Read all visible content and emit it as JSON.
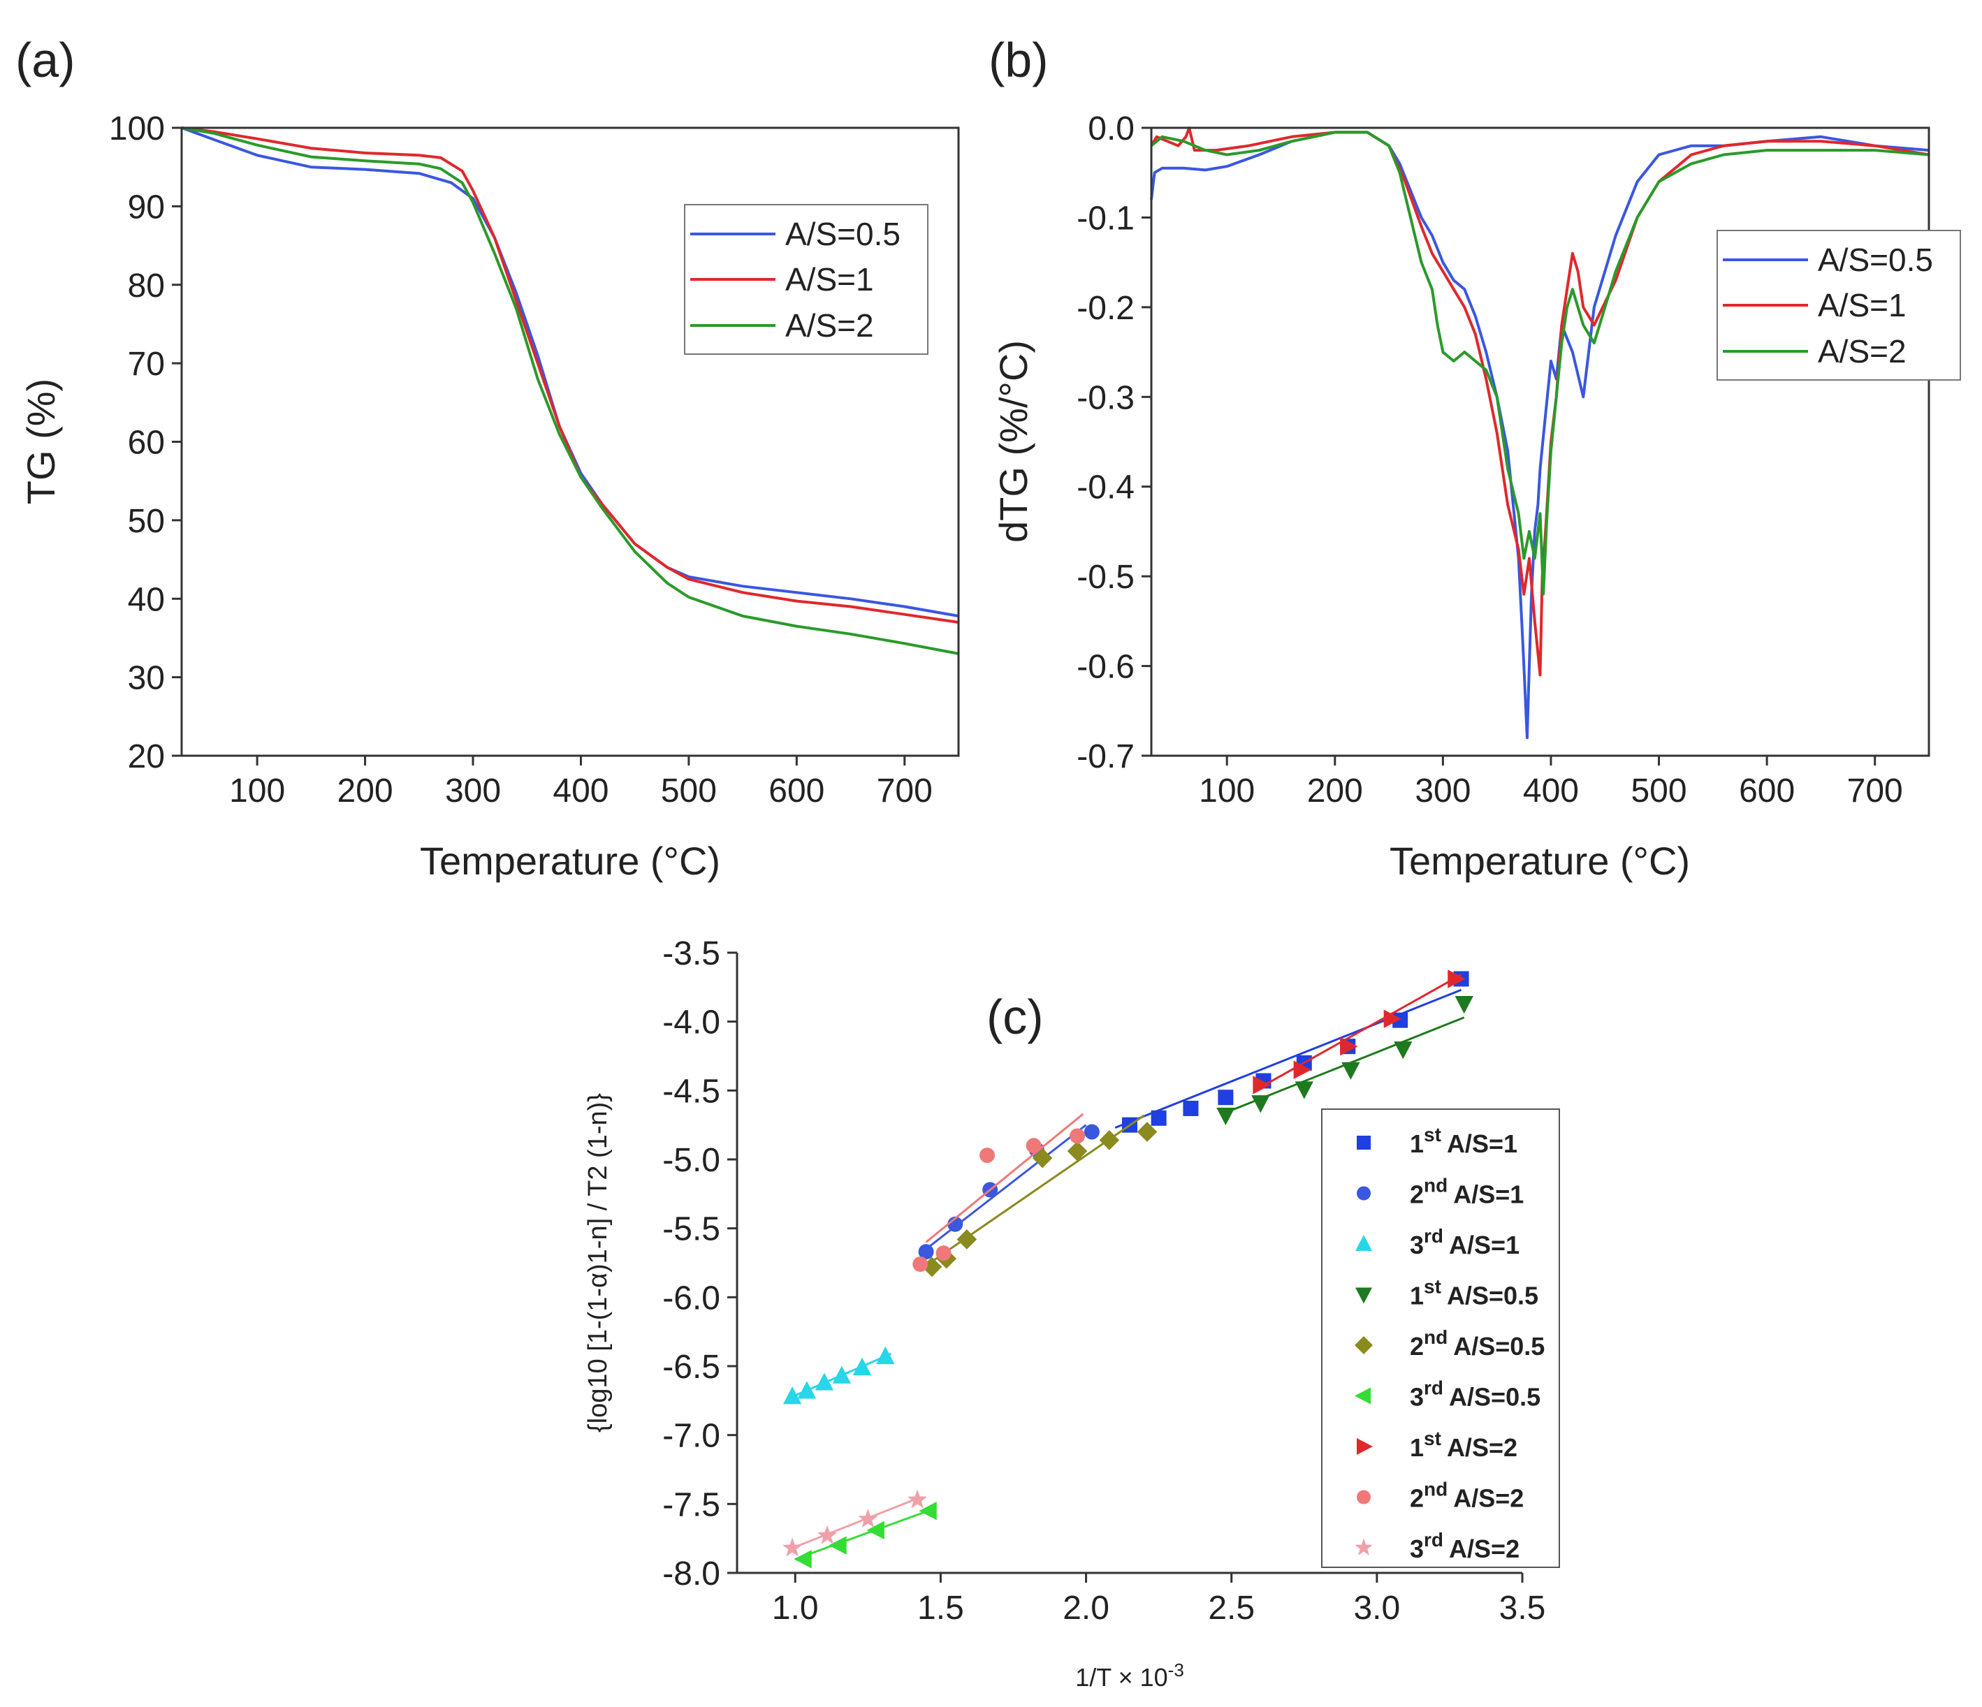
{
  "figure": {
    "panels": [
      "(a)",
      "(b)",
      "(c)"
    ]
  },
  "chart_data": [
    {
      "panel": "(a)",
      "type": "line",
      "xlabel": "Temperature (°C)",
      "ylabel": "TG (%)",
      "xlim": [
        30,
        750
      ],
      "ylim": [
        20,
        100
      ],
      "xticks": [
        "100",
        "200",
        "300",
        "400",
        "500",
        "600",
        "700"
      ],
      "yticks": [
        "20",
        "30",
        "40",
        "50",
        "60",
        "70",
        "80",
        "90",
        "100"
      ],
      "legend": "top-right",
      "series": [
        {
          "name": "A/S=0.5",
          "color": "#3a57e0",
          "x": [
            30,
            60,
            100,
            150,
            200,
            250,
            280,
            300,
            320,
            340,
            360,
            380,
            400,
            420,
            450,
            480,
            500,
            550,
            600,
            650,
            700,
            750
          ],
          "y": [
            100,
            98.5,
            96.5,
            95,
            94.7,
            94.2,
            93,
            91,
            86,
            79,
            71,
            62,
            56,
            52,
            47,
            44,
            42.8,
            41.6,
            40.8,
            40,
            39,
            37.8
          ]
        },
        {
          "name": "A/S=1",
          "color": "#e0282c",
          "x": [
            30,
            60,
            100,
            150,
            200,
            250,
            270,
            290,
            300,
            320,
            340,
            360,
            380,
            400,
            420,
            450,
            480,
            500,
            550,
            600,
            650,
            700,
            750
          ],
          "y": [
            100,
            99.5,
            98.6,
            97.4,
            96.8,
            96.5,
            96.2,
            94.5,
            92,
            86,
            78,
            70,
            62,
            55.5,
            52,
            47,
            44,
            42.5,
            40.8,
            39.7,
            39,
            38,
            37
          ]
        },
        {
          "name": "A/S=2",
          "color": "#2a9a2a",
          "x": [
            30,
            60,
            100,
            150,
            200,
            250,
            270,
            290,
            300,
            320,
            340,
            360,
            380,
            400,
            420,
            450,
            480,
            500,
            550,
            600,
            650,
            700,
            750
          ],
          "y": [
            100,
            99.3,
            97.8,
            96.3,
            95.8,
            95.4,
            94.8,
            93,
            90.5,
            84,
            77,
            68,
            61,
            55.5,
            51.5,
            46,
            42,
            40.2,
            37.8,
            36.5,
            35.5,
            34.3,
            33
          ]
        }
      ]
    },
    {
      "panel": "(b)",
      "type": "line",
      "xlabel": "Temperature (°C)",
      "ylabel": "dTG (%/°C)",
      "xlim": [
        30,
        750
      ],
      "ylim": [
        -0.7,
        0.0
      ],
      "xticks": [
        "100",
        "200",
        "300",
        "400",
        "500",
        "600",
        "700"
      ],
      "yticks": [
        "-0.7",
        "-0.6",
        "-0.5",
        "-0.4",
        "-0.3",
        "-0.2",
        "-0.1",
        "0.0"
      ],
      "legend": "top-right",
      "series": [
        {
          "name": "A/S=0.5",
          "color": "#3a57e0",
          "x": [
            30,
            33,
            40,
            60,
            80,
            100,
            130,
            160,
            200,
            230,
            250,
            260,
            270,
            280,
            290,
            300,
            310,
            320,
            330,
            340,
            350,
            360,
            365,
            370,
            373,
            375,
            378,
            380,
            382,
            385,
            388,
            390,
            395,
            400,
            405,
            410,
            420,
            430,
            440,
            460,
            480,
            500,
            530,
            560,
            600,
            650,
            700,
            750
          ],
          "y": [
            -0.08,
            -0.05,
            -0.045,
            -0.045,
            -0.047,
            -0.043,
            -0.03,
            -0.015,
            -0.005,
            -0.005,
            -0.02,
            -0.04,
            -0.07,
            -0.1,
            -0.12,
            -0.15,
            -0.17,
            -0.18,
            -0.21,
            -0.25,
            -0.3,
            -0.36,
            -0.42,
            -0.48,
            -0.55,
            -0.6,
            -0.68,
            -0.6,
            -0.52,
            -0.45,
            -0.42,
            -0.38,
            -0.32,
            -0.26,
            -0.28,
            -0.22,
            -0.25,
            -0.3,
            -0.2,
            -0.12,
            -0.06,
            -0.03,
            -0.02,
            -0.02,
            -0.015,
            -0.01,
            -0.02,
            -0.025
          ]
        },
        {
          "name": "A/S=1",
          "color": "#e0282c",
          "x": [
            30,
            35,
            45,
            55,
            62,
            65,
            70,
            90,
            120,
            160,
            200,
            230,
            250,
            265,
            280,
            290,
            300,
            310,
            320,
            330,
            340,
            350,
            360,
            370,
            375,
            380,
            385,
            390,
            392,
            395,
            400,
            405,
            410,
            415,
            420,
            425,
            430,
            440,
            460,
            480,
            500,
            530,
            560,
            600,
            650,
            700,
            750
          ],
          "y": [
            -0.02,
            -0.01,
            -0.015,
            -0.02,
            -0.01,
            0.0,
            -0.025,
            -0.025,
            -0.02,
            -0.01,
            -0.005,
            -0.005,
            -0.02,
            -0.06,
            -0.11,
            -0.14,
            -0.16,
            -0.18,
            -0.2,
            -0.23,
            -0.28,
            -0.34,
            -0.42,
            -0.47,
            -0.52,
            -0.48,
            -0.55,
            -0.61,
            -0.5,
            -0.45,
            -0.35,
            -0.3,
            -0.22,
            -0.18,
            -0.14,
            -0.16,
            -0.2,
            -0.22,
            -0.17,
            -0.1,
            -0.06,
            -0.03,
            -0.02,
            -0.015,
            -0.015,
            -0.02,
            -0.03
          ]
        },
        {
          "name": "A/S=2",
          "color": "#2a9a2a",
          "x": [
            30,
            40,
            60,
            80,
            100,
            130,
            160,
            200,
            230,
            250,
            260,
            270,
            280,
            290,
            295,
            300,
            310,
            320,
            330,
            340,
            350,
            360,
            370,
            375,
            380,
            385,
            390,
            393,
            396,
            400,
            405,
            410,
            415,
            420,
            430,
            440,
            450,
            460,
            480,
            500,
            530,
            560,
            600,
            650,
            700,
            750
          ],
          "y": [
            -0.02,
            -0.01,
            -0.015,
            -0.025,
            -0.03,
            -0.025,
            -0.015,
            -0.005,
            -0.005,
            -0.02,
            -0.05,
            -0.1,
            -0.15,
            -0.18,
            -0.22,
            -0.25,
            -0.26,
            -0.25,
            -0.26,
            -0.27,
            -0.3,
            -0.38,
            -0.43,
            -0.48,
            -0.45,
            -0.48,
            -0.43,
            -0.52,
            -0.44,
            -0.36,
            -0.3,
            -0.24,
            -0.2,
            -0.18,
            -0.22,
            -0.24,
            -0.2,
            -0.16,
            -0.1,
            -0.06,
            -0.04,
            -0.03,
            -0.025,
            -0.025,
            -0.025,
            -0.03
          ]
        }
      ]
    },
    {
      "panel": "(c)",
      "type": "scatter",
      "xlabel": "1/T × 10",
      "xlabel_exp": "-3",
      "ylabel": "{log10 [1-(1-α)1-n] / T2 (1-n)}",
      "xlim": [
        0.8,
        3.5
      ],
      "ylim": [
        -8.0,
        -3.5
      ],
      "xticks": [
        "1.0",
        "1.5",
        "2.0",
        "2.5",
        "3.0",
        "3.5"
      ],
      "yticks": [
        "-3.5",
        "-4.0",
        "-4.5",
        "-5.0",
        "-5.5",
        "-6.0",
        "-6.5",
        "-7.0",
        "-7.5",
        "-8.0"
      ],
      "legend": "right",
      "series": [
        {
          "ord": "1",
          "sup": "st",
          "label": "A/S=1",
          "color": "#1f3fe0",
          "marker": "square",
          "x": [
            2.15,
            2.25,
            2.36,
            2.48,
            2.61,
            2.75,
            2.9,
            3.08,
            3.29
          ],
          "y": [
            -4.75,
            -4.7,
            -4.63,
            -4.55,
            -4.43,
            -4.3,
            -4.18,
            -3.99,
            -3.69
          ],
          "fit": [
            [
              2.1,
              -4.77
            ],
            [
              3.29,
              -3.77
            ]
          ]
        },
        {
          "ord": "2",
          "sup": "nd",
          "label": "A/S=1",
          "color": "#3a57e0",
          "marker": "circle",
          "x": [
            1.45,
            1.55,
            1.67,
            1.83,
            2.02
          ],
          "y": [
            -5.67,
            -5.47,
            -5.22,
            -4.93,
            -4.8
          ],
          "fit": [
            [
              1.45,
              -5.65
            ],
            [
              2.0,
              -4.75
            ]
          ]
        },
        {
          "ord": "3",
          "sup": "rd",
          "label": "A/S=1",
          "color": "#27d6e8",
          "marker": "triangle-up",
          "x": [
            0.99,
            1.04,
            1.1,
            1.16,
            1.23,
            1.31
          ],
          "y": [
            -6.72,
            -6.68,
            -6.62,
            -6.57,
            -6.51,
            -6.43
          ],
          "fit": [
            [
              0.97,
              -6.74
            ],
            [
              1.33,
              -6.41
            ]
          ]
        },
        {
          "ord": "1",
          "sup": "st",
          "label": "A/S=0.5",
          "color": "#1e7a1e",
          "marker": "triangle-down",
          "x": [
            2.48,
            2.6,
            2.75,
            2.91,
            3.09,
            3.3
          ],
          "y": [
            -4.68,
            -4.59,
            -4.49,
            -4.35,
            -4.2,
            -3.87
          ],
          "fit": [
            [
              2.48,
              -4.66
            ],
            [
              3.3,
              -3.97
            ]
          ]
        },
        {
          "ord": "2",
          "sup": "nd",
          "label": "A/S=0.5",
          "color": "#8a8a1e",
          "marker": "diamond",
          "x": [
            1.47,
            1.52,
            1.59,
            1.85,
            1.97,
            2.08,
            2.21
          ],
          "y": [
            -5.78,
            -5.72,
            -5.58,
            -4.99,
            -4.94,
            -4.86,
            -4.8
          ],
          "fit": [
            [
              1.45,
              -5.77
            ],
            [
              2.2,
              -4.68
            ]
          ]
        },
        {
          "ord": "3",
          "sup": "rd",
          "label": "A/S=0.5",
          "color": "#33dd33",
          "marker": "triangle-left",
          "x": [
            1.03,
            1.15,
            1.28,
            1.46
          ],
          "y": [
            -7.9,
            -7.8,
            -7.69,
            -7.55
          ],
          "fit": [
            [
              1.0,
              -7.9
            ],
            [
              1.47,
              -7.54
            ]
          ]
        },
        {
          "ord": "1",
          "sup": "st",
          "label": "A/S=2",
          "color": "#e0282c",
          "marker": "triangle-right",
          "x": [
            2.6,
            2.74,
            2.9,
            3.05,
            3.27
          ],
          "y": [
            -4.46,
            -4.35,
            -4.18,
            -3.98,
            -3.69
          ],
          "fit": [
            [
              2.58,
              -4.5
            ],
            [
              3.29,
              -3.66
            ]
          ]
        },
        {
          "ord": "2",
          "sup": "nd",
          "label": "A/S=2",
          "color": "#f07878",
          "marker": "circle",
          "x": [
            1.43,
            1.51,
            1.66,
            1.82,
            1.97
          ],
          "y": [
            -5.76,
            -5.68,
            -4.97,
            -4.9,
            -4.83
          ],
          "fit": [
            [
              1.45,
              -5.6
            ],
            [
              1.99,
              -4.67
            ]
          ]
        },
        {
          "ord": "3",
          "sup": "rd",
          "label": "A/S=2",
          "color": "#f0a0a8",
          "marker": "star",
          "x": [
            0.99,
            1.11,
            1.25,
            1.42
          ],
          "y": [
            -7.82,
            -7.73,
            -7.61,
            -7.47
          ],
          "fit": [
            [
              0.99,
              -7.82
            ],
            [
              1.42,
              -7.46
            ]
          ]
        }
      ]
    }
  ]
}
